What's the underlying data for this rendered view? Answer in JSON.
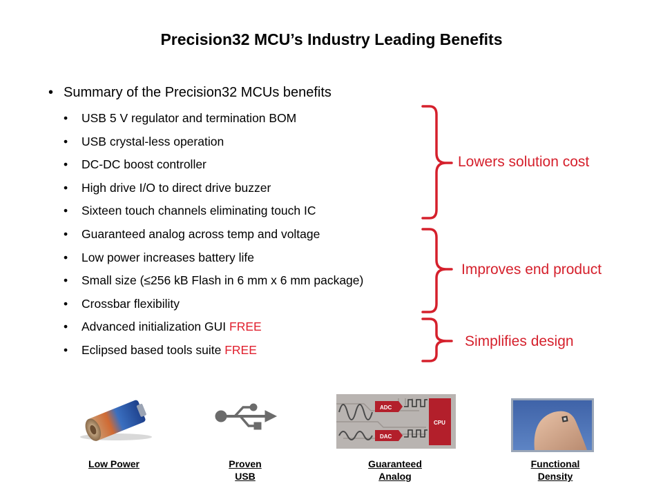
{
  "title": "Precision32 MCU’s Industry Leading Benefits",
  "summary": "Summary of the Precision32 MCUs benefits",
  "benefits": [
    {
      "text": "USB 5 V regulator and termination BOM",
      "free": ""
    },
    {
      "text": "USB crystal-less operation",
      "free": ""
    },
    {
      "text": "DC-DC boost controller",
      "free": ""
    },
    {
      "text": "High drive I/O to direct drive buzzer",
      "free": ""
    },
    {
      "text": "Sixteen touch channels eliminating touch IC",
      "free": ""
    },
    {
      "text": "Guaranteed analog across temp and voltage",
      "free": ""
    },
    {
      "text": "Low power increases battery life",
      "free": ""
    },
    {
      "text": "Small size (≤256 kB Flash in 6 mm x 6 mm package)",
      "free": ""
    },
    {
      "text": "Crossbar flexibility",
      "free": ""
    },
    {
      "text": "Advanced initialization GUI ",
      "free": "FREE"
    },
    {
      "text": "Eclipsed based tools suite ",
      "free": "FREE"
    }
  ],
  "callouts": {
    "cost": "Lowers solution cost",
    "product": "Improves end product",
    "design": "Simplifies design"
  },
  "icons": {
    "power": {
      "line1": "Low Power",
      "line2": ""
    },
    "usb": {
      "line1": "Proven",
      "line2": "USB"
    },
    "analog": {
      "line1": "Guaranteed",
      "line2": "Analog",
      "adc": "ADC",
      "dac": "DAC",
      "cpu": "CPU"
    },
    "density": {
      "line1": "Functional",
      "line2": "Density"
    }
  },
  "colors": {
    "accent": "#d5202c",
    "free": "#e0202e"
  }
}
